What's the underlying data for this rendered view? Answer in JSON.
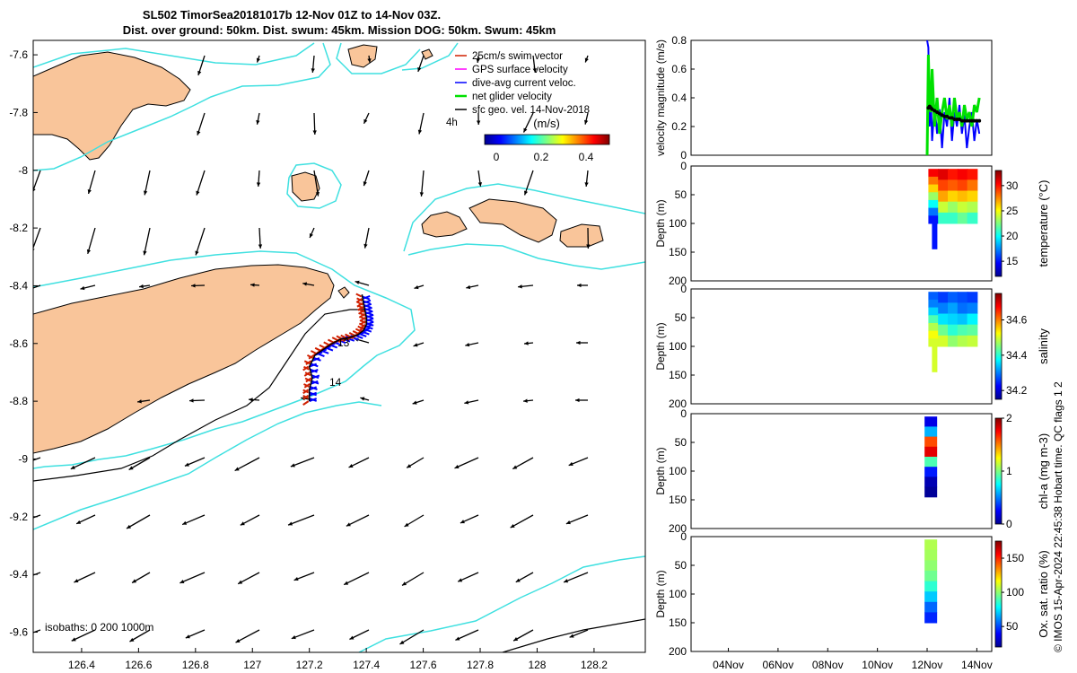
{
  "title": {
    "line1": "SL502 TimorSea20181017b 12-Nov 01Z to 14-Nov 03Z.",
    "line2": "Dist. over ground: 50km. Dist. swum: 45km. Mission DOG: 50km. Swum: 45km"
  },
  "colors": {
    "land": "#f9c59a",
    "isobath_200": "#3fe0e0",
    "isobath_1000": "#000000",
    "gps_velocity": "#ff00ff",
    "dive_avg": "#0000ff",
    "net_glider": "#00e000",
    "swim": "#d02000",
    "geo_vel": "#000000"
  },
  "map": {
    "xlim": [
      126.23,
      128.38
    ],
    "ylim": [
      -9.67,
      -7.55
    ],
    "x_ticks": [
      "126.4",
      "126.6",
      "126.8",
      "127",
      "127.2",
      "127.4",
      "127.6",
      "127.8",
      "128",
      "128.2"
    ],
    "y_ticks": [
      "-7.6",
      "-7.8",
      "-8",
      "-8.2",
      "-8.4",
      "-8.6",
      "-8.8",
      "-9",
      "-9.2",
      "-9.4",
      "-9.6"
    ],
    "legend": [
      "25cm/s swim vector",
      "GPS surface velocity",
      "dive-avg current veloc.",
      "net glider velocity",
      "sfc geo. vel. 14-Nov-2018"
    ],
    "legend_extra": "4h",
    "colorbar_title": "(m/s)",
    "colorbar_ticks": [
      "0",
      "0.2",
      "0.4"
    ],
    "day_labels": [
      "13",
      "14"
    ],
    "isobath_note": "isobaths: 0   200  1000m",
    "track": [
      [
        127.2,
        -8.8
      ],
      [
        127.2,
        -8.76
      ],
      [
        127.21,
        -8.72
      ],
      [
        127.2,
        -8.68
      ],
      [
        127.22,
        -8.64
      ],
      [
        127.25,
        -8.62
      ],
      [
        127.28,
        -8.6
      ],
      [
        127.31,
        -8.585
      ],
      [
        127.34,
        -8.58
      ],
      [
        127.37,
        -8.57
      ],
      [
        127.39,
        -8.555
      ],
      [
        127.4,
        -8.535
      ],
      [
        127.4,
        -8.51
      ],
      [
        127.395,
        -8.485
      ],
      [
        127.39,
        -8.46
      ],
      [
        127.385,
        -8.43
      ]
    ]
  },
  "chart_data": [
    {
      "type": "line",
      "title": "",
      "ylabel": "velocity magnitude (m/s)",
      "ylim": [
        0,
        0.8
      ],
      "y_ticks": [
        "0",
        "0.2",
        "0.4",
        "0.6",
        "0.8"
      ],
      "x": [
        12.0,
        12.05,
        12.1,
        12.15,
        12.2,
        12.3,
        12.4,
        12.5,
        12.6,
        12.7,
        12.8,
        12.9,
        13.0,
        13.1,
        13.2,
        13.3,
        13.4,
        13.5,
        13.6,
        13.7,
        13.8,
        13.9,
        14.0,
        14.1
      ],
      "series": [
        {
          "name": "dive-avg current veloc.",
          "values": [
            0.8,
            0.75,
            0.2,
            0.4,
            0.1,
            0.35,
            0.15,
            0.32,
            0.05,
            0.3,
            0.2,
            0.4,
            0.1,
            0.3,
            0.2,
            0.35,
            0.15,
            0.28,
            0.05,
            0.2,
            0.3,
            0.1,
            0.25,
            0.15
          ]
        },
        {
          "name": "net glider velocity",
          "values": [
            0.0,
            0.7,
            0.35,
            0.3,
            0.6,
            0.2,
            0.4,
            0.15,
            0.3,
            0.4,
            0.25,
            0.35,
            0.2,
            0.4,
            0.25,
            0.3,
            0.2,
            0.35,
            0.25,
            0.3,
            0.2,
            0.35,
            0.3,
            0.4
          ]
        },
        {
          "name": "sfc geo. vel. 14-Nov-2018",
          "values": [
            null,
            0.33,
            0.34,
            0.33,
            0.32,
            0.31,
            0.3,
            0.29,
            0.28,
            0.27,
            0.27,
            0.26,
            0.26,
            0.25,
            0.25,
            0.25,
            0.24,
            0.24,
            0.24,
            0.24,
            0.24,
            0.24,
            0.24,
            0.24
          ]
        }
      ]
    },
    {
      "type": "heatmap",
      "ylabel": "Depth (m)",
      "colorbar_label": "temperature (°C)",
      "colorbar_range": [
        12,
        33
      ],
      "colorbar_ticks": [
        "15",
        "20",
        "25",
        "30"
      ],
      "ylim": [
        200,
        0
      ],
      "y_ticks": [
        "0",
        "50",
        "100",
        "150",
        "200"
      ],
      "columns": [
        {
          "t": 12.05,
          "max_depth": 145,
          "values": [
            30.5,
            28,
            26,
            23,
            20,
            17,
            15
          ]
        },
        {
          "t": 12.4,
          "max_depth": 100,
          "values": [
            31,
            29,
            27,
            24,
            21
          ]
        },
        {
          "t": 12.9,
          "max_depth": 100,
          "values": [
            30,
            28.5,
            26,
            23,
            21
          ]
        },
        {
          "t": 13.4,
          "max_depth": 100,
          "values": [
            30.5,
            29,
            26.5,
            24,
            22
          ]
        },
        {
          "t": 13.9,
          "max_depth": 100,
          "values": [
            30,
            28,
            26,
            23.5,
            21
          ]
        }
      ]
    },
    {
      "type": "heatmap",
      "ylabel": "Depth (m)",
      "colorbar_label": "salinity",
      "colorbar_range": [
        34.15,
        34.75
      ],
      "colorbar_ticks": [
        "34.2",
        "34.4",
        "34.6"
      ],
      "ylim": [
        200,
        0
      ],
      "y_ticks": [
        "0",
        "50",
        "100",
        "150",
        "200"
      ],
      "columns": [
        {
          "t": 12.05,
          "max_depth": 145,
          "values": [
            34.28,
            34.3,
            34.35,
            34.42,
            34.48,
            34.52,
            34.5
          ]
        },
        {
          "t": 12.4,
          "max_depth": 100,
          "values": [
            34.26,
            34.3,
            34.36,
            34.44,
            34.5
          ]
        },
        {
          "t": 12.9,
          "max_depth": 100,
          "values": [
            34.28,
            34.32,
            34.35,
            34.4,
            34.46
          ]
        },
        {
          "t": 13.4,
          "max_depth": 100,
          "values": [
            34.27,
            34.29,
            34.34,
            34.42,
            34.48
          ]
        },
        {
          "t": 13.9,
          "max_depth": 100,
          "values": [
            34.26,
            34.3,
            34.37,
            34.43,
            34.49
          ]
        }
      ]
    },
    {
      "type": "heatmap",
      "ylabel": "Depth (m)",
      "colorbar_label": "chl-a (mg m-3)",
      "colorbar_range": [
        0,
        2
      ],
      "colorbar_ticks": [
        "0",
        "1",
        "2"
      ],
      "ylim": [
        200,
        0
      ],
      "y_ticks": [
        "0",
        "50",
        "100",
        "150",
        "200"
      ],
      "columns": [
        {
          "t": 12.15,
          "max_depth": 145,
          "values": [
            0.2,
            0.6,
            1.6,
            1.8,
            0.9,
            0.3,
            0.1,
            0.05
          ]
        }
      ]
    },
    {
      "type": "heatmap",
      "ylabel": "Depth (m)",
      "colorbar_label": "Ox. sat. ratio (%)",
      "colorbar_range": [
        20,
        175
      ],
      "colorbar_ticks": [
        "50",
        "100",
        "150"
      ],
      "ylim": [
        200,
        0
      ],
      "y_ticks": [
        "0",
        "50",
        "100",
        "150",
        "200"
      ],
      "x_ticks": [
        "04Nov",
        "06Nov",
        "08Nov",
        "10Nov",
        "12Nov",
        "14Nov"
      ],
      "columns": [
        {
          "t": 12.15,
          "max_depth": 150,
          "values": [
            105,
            103,
            100,
            95,
            85,
            70,
            55,
            45
          ]
        }
      ]
    }
  ],
  "footer": "© IMOS 15-Apr-2024 22:45:38 Hobart time. QC flags 1  2"
}
